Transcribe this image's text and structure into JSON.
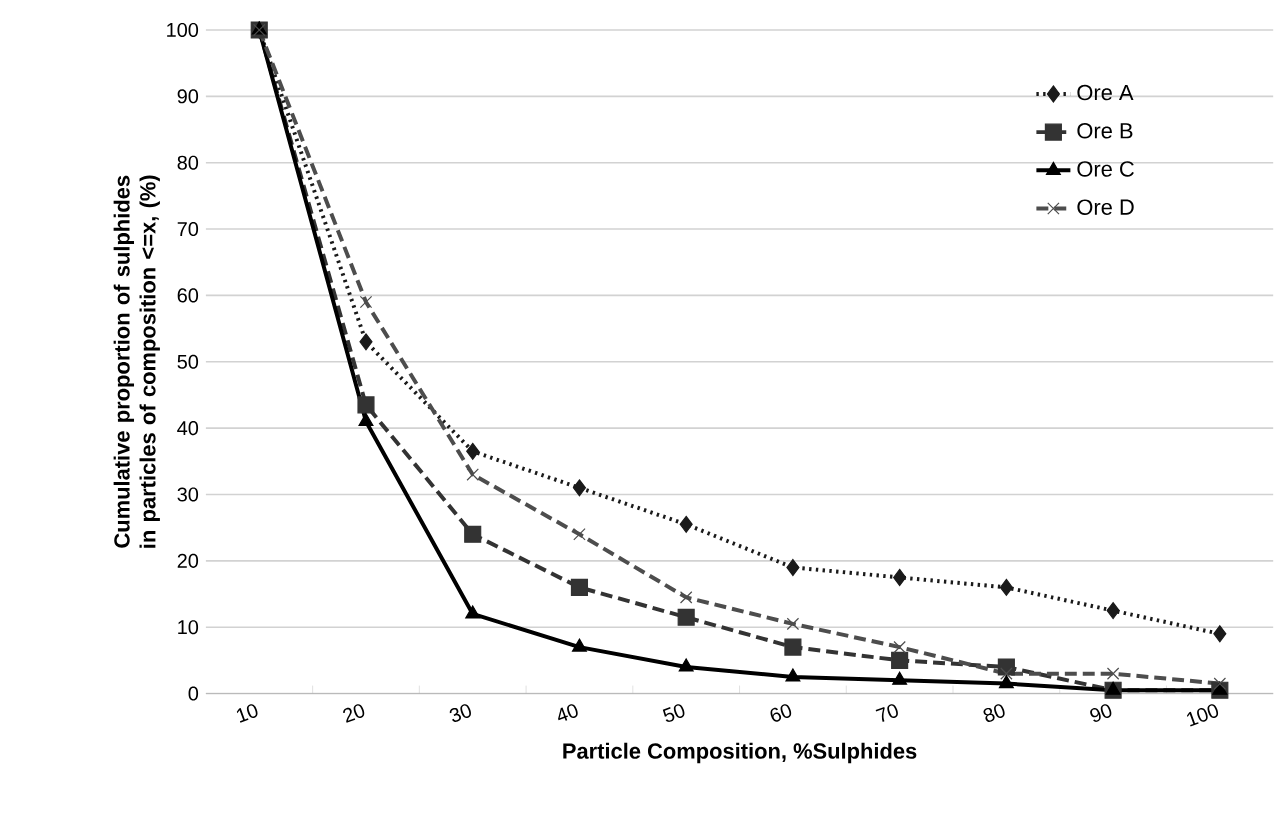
{
  "chart_data": {
    "type": "line",
    "xlabel": "Particle Composition, %Sulphides",
    "ylabel": "Cumulative proportion of sulphides in particles of composition <=x, (%)",
    "categories": [
      "10",
      "20",
      "30",
      "40",
      "50",
      "60",
      "70",
      "80",
      "90",
      "100"
    ],
    "ylim": [
      0,
      100
    ],
    "yticks": [
      0,
      10,
      20,
      30,
      40,
      50,
      60,
      70,
      80,
      90,
      100
    ],
    "grid": "y",
    "legend": "top right",
    "series": [
      {
        "name": "Ore A",
        "color": "#1a1a1a",
        "marker": "diamond",
        "line_style": "dotted",
        "values": [
          100,
          53,
          36.5,
          31,
          25.5,
          19,
          17.5,
          16,
          12.5,
          9
        ]
      },
      {
        "name": "Ore B",
        "color": "#333333",
        "marker": "square",
        "line_style": "dashed",
        "values": [
          100,
          43.5,
          24,
          16,
          11.5,
          7,
          5,
          4,
          0.5,
          0.5
        ]
      },
      {
        "name": "Ore C",
        "color": "#000000",
        "marker": "triangle",
        "line_style": "solid",
        "values": [
          100,
          41,
          12,
          7,
          4,
          2.5,
          2,
          1.5,
          0.5,
          0.5
        ]
      },
      {
        "name": "Ore D",
        "color": "#4d4d4d",
        "marker": "cross",
        "line_style": "dashed",
        "values": [
          100,
          59,
          33,
          24,
          14.5,
          10.5,
          7,
          3,
          3,
          1.5
        ]
      }
    ]
  }
}
